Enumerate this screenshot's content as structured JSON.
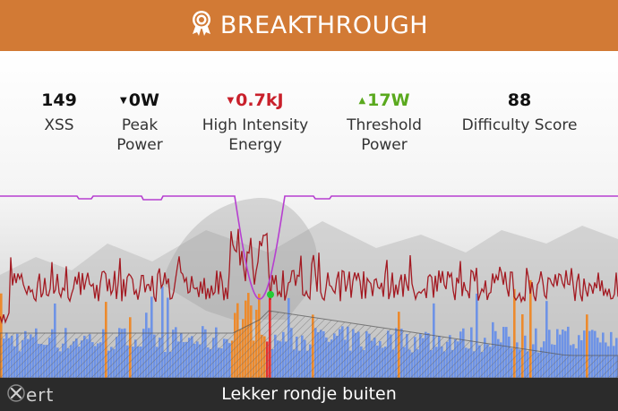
{
  "header": {
    "title": "BREAKTHROUGH",
    "icon": "award-ribbon-icon"
  },
  "stats": [
    {
      "id": "xss",
      "value": "149",
      "label_lines": [
        "XSS"
      ],
      "trend": "none",
      "color": "#111111"
    },
    {
      "id": "peak",
      "value": "0W",
      "label_lines": [
        "Peak",
        "Power"
      ],
      "trend": "down",
      "color": "#111111"
    },
    {
      "id": "hie",
      "value": "0.7kJ",
      "label_lines": [
        "High Intensity",
        "Energy"
      ],
      "trend": "down",
      "color": "#c9202b"
    },
    {
      "id": "tp",
      "value": "17W",
      "label_lines": [
        "Threshold",
        "Power"
      ],
      "trend": "up",
      "color": "#5aa91e"
    },
    {
      "id": "diff",
      "value": "88",
      "label_lines": [
        "Difficulty Score"
      ],
      "trend": "none",
      "color": "#111111"
    }
  ],
  "colors": {
    "header_bg": "#d27a35",
    "power_line": "#a31a22",
    "mpa_line": "#b63fd0",
    "bar_blue": "#6e93e6",
    "bar_orange": "#ec8a2d",
    "bar_red": "#e53030",
    "marker": "#22cc33",
    "footer_bg": "#2b2b2b"
  },
  "footer": {
    "activity_name": "Lekker rondje buiten",
    "brand": "xert",
    "brand_icon": "xert-logo-icon"
  }
}
